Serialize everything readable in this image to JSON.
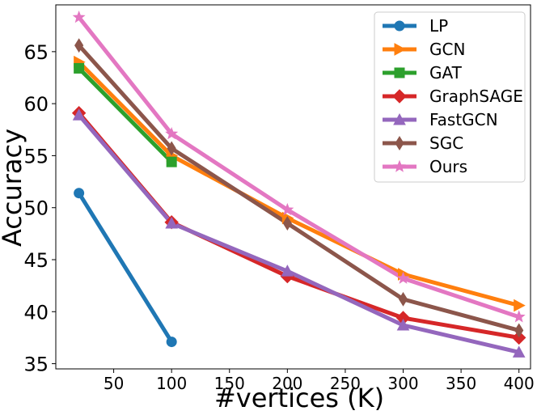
{
  "chart_data": {
    "type": "line",
    "title": "",
    "xlabel": "#vertices (K)",
    "ylabel": "Accuracy",
    "xlim": [
      0,
      410
    ],
    "ylim": [
      34.5,
      69.5
    ],
    "xticks": [
      50,
      100,
      150,
      200,
      250,
      300,
      350,
      400
    ],
    "yticks": [
      35,
      40,
      45,
      50,
      55,
      60,
      65
    ],
    "legend_position": "top-right",
    "grid": false,
    "series": [
      {
        "name": "LP",
        "color": "#1f77b4",
        "marker": "circle",
        "x": [
          20,
          100
        ],
        "y": [
          51.4,
          37.1
        ]
      },
      {
        "name": "GCN",
        "color": "#ff7f0e",
        "marker": "triangle-right",
        "x": [
          20,
          100,
          200,
          300,
          400
        ],
        "y": [
          64.0,
          55.0,
          49.0,
          43.6,
          40.6
        ]
      },
      {
        "name": "GAT",
        "color": "#2ca02c",
        "marker": "square",
        "x": [
          20,
          100
        ],
        "y": [
          63.4,
          54.4
        ]
      },
      {
        "name": "GraphSAGE",
        "color": "#d62728",
        "marker": "diamond",
        "x": [
          20,
          100,
          200,
          300,
          400
        ],
        "y": [
          59.1,
          48.6,
          43.4,
          39.4,
          37.5
        ]
      },
      {
        "name": "FastGCN",
        "color": "#9467bd",
        "marker": "triangle-up",
        "x": [
          20,
          100,
          200,
          300,
          400
        ],
        "y": [
          58.9,
          48.5,
          43.9,
          38.7,
          36.1
        ]
      },
      {
        "name": "SGC",
        "color": "#8c564b",
        "marker": "thin-diamond",
        "x": [
          20,
          100,
          200,
          300,
          400
        ],
        "y": [
          65.6,
          55.7,
          48.5,
          41.2,
          38.2
        ]
      },
      {
        "name": "Ours",
        "color": "#e377c2",
        "marker": "star",
        "x": [
          20,
          100,
          200,
          300,
          400
        ],
        "y": [
          68.3,
          57.1,
          49.8,
          43.2,
          39.5
        ]
      }
    ]
  }
}
